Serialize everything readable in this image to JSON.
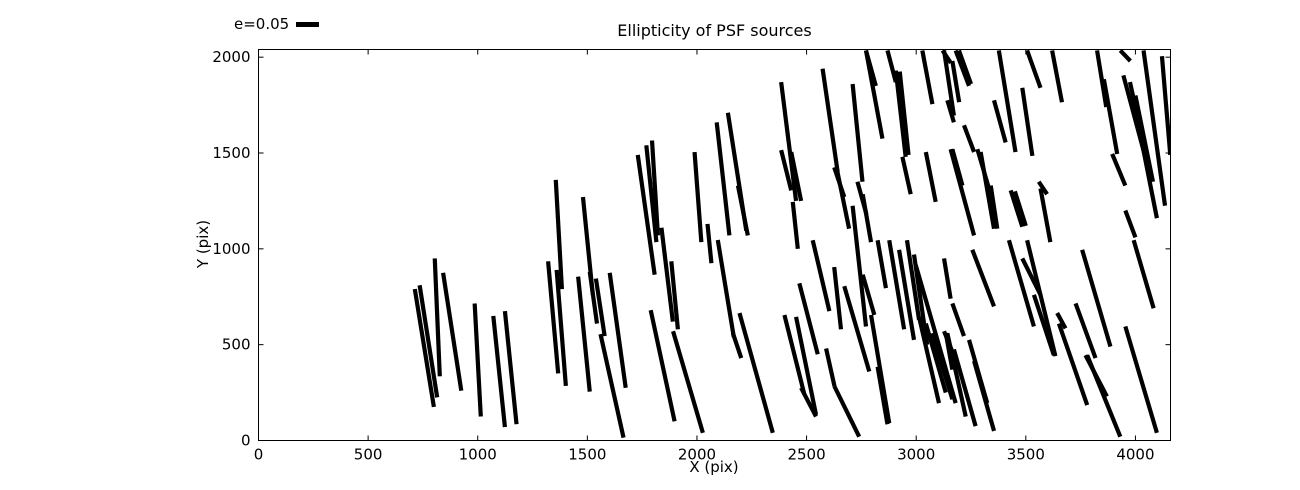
{
  "title": "Ellipticity of PSF sources",
  "legend": {
    "label": "e=0.05",
    "e_value": 0.05
  },
  "axes": {
    "xlabel": "X (pix)",
    "ylabel": "Y (pix)"
  },
  "colors": {
    "stick": "#000000",
    "frame": "#000000",
    "background": "#ffffff"
  },
  "chart_data": {
    "type": "scatter",
    "marker": "ellipticity-stick",
    "title": "Ellipticity of PSF sources",
    "xlabel": "X (pix)",
    "ylabel": "Y (pix)",
    "xlim": [
      0,
      4160
    ],
    "ylim": [
      0,
      2040
    ],
    "xticks": [
      0,
      500,
      1000,
      1500,
      2000,
      2500,
      3000,
      3500,
      4000
    ],
    "yticks": [
      0,
      500,
      1000,
      1500,
      2000
    ],
    "grid": false,
    "legend_position": "top-left-outside",
    "legend_e": 0.05,
    "sticks": [
      [
        713,
        790,
        800,
        175
      ],
      [
        735,
        810,
        815,
        225
      ],
      [
        804,
        950,
        827,
        335
      ],
      [
        842,
        875,
        925,
        260
      ],
      [
        986,
        715,
        1014,
        125
      ],
      [
        1071,
        650,
        1124,
        70
      ],
      [
        1124,
        675,
        1177,
        85
      ],
      [
        1321,
        935,
        1367,
        350
      ],
      [
        1356,
        1360,
        1384,
        790
      ],
      [
        1360,
        890,
        1402,
        285
      ],
      [
        1458,
        855,
        1511,
        255
      ],
      [
        1480,
        1270,
        1525,
        760
      ],
      [
        1511,
        880,
        1544,
        610
      ],
      [
        1539,
        845,
        1579,
        545
      ],
      [
        1560,
        555,
        1665,
        15
      ],
      [
        1602,
        875,
        1675,
        275
      ],
      [
        1730,
        1490,
        1807,
        865
      ],
      [
        1769,
        1540,
        1815,
        1035
      ],
      [
        1795,
        1565,
        1822,
        1070
      ],
      [
        1789,
        680,
        1898,
        100
      ],
      [
        1838,
        1110,
        1890,
        620
      ],
      [
        1883,
        935,
        1913,
        580
      ],
      [
        1891,
        570,
        2027,
        40
      ],
      [
        1989,
        1505,
        2020,
        1035
      ],
      [
        2048,
        1130,
        2066,
        925
      ],
      [
        2095,
        1046,
        2168,
        540
      ],
      [
        2090,
        1660,
        2148,
        1070
      ],
      [
        2141,
        1710,
        2225,
        1095
      ],
      [
        2187,
        1330,
        2232,
        1070
      ],
      [
        2164,
        560,
        2202,
        430
      ],
      [
        2194,
        665,
        2346,
        40
      ],
      [
        2384,
        1870,
        2452,
        1250
      ],
      [
        2384,
        1515,
        2430,
        1305
      ],
      [
        2430,
        1505,
        2475,
        1250
      ],
      [
        2437,
        1245,
        2460,
        1000
      ],
      [
        2399,
        655,
        2490,
        240
      ],
      [
        2452,
        645,
        2543,
        135
      ],
      [
        2467,
        820,
        2551,
        450
      ],
      [
        2475,
        275,
        2543,
        125
      ],
      [
        2573,
        1940,
        2642,
        1400
      ],
      [
        2626,
        1425,
        2672,
        1270
      ],
      [
        2641,
        1400,
        2694,
        1105
      ],
      [
        2528,
        1045,
        2604,
        675
      ],
      [
        2589,
        480,
        2627,
        285
      ],
      [
        2626,
        905,
        2657,
        580
      ],
      [
        2626,
        285,
        2740,
        20
      ],
      [
        2710,
        1860,
        2755,
        1350
      ],
      [
        2732,
        1350,
        2773,
        1180
      ],
      [
        2710,
        1225,
        2771,
        595
      ],
      [
        2756,
        1285,
        2794,
        1035
      ],
      [
        2672,
        805,
        2786,
        360
      ],
      [
        2756,
        865,
        2809,
        655
      ],
      [
        2794,
        655,
        2877,
        90
      ],
      [
        2824,
        385,
        2869,
        85
      ],
      [
        2771,
        2035,
        2816,
        1850
      ],
      [
        2771,
        2035,
        2846,
        1575
      ],
      [
        2824,
        1045,
        2862,
        795
      ],
      [
        2869,
        2035,
        2907,
        1870
      ],
      [
        2907,
        1930,
        2952,
        1480
      ],
      [
        2925,
        1925,
        2965,
        1490
      ],
      [
        2937,
        1480,
        2975,
        1285
      ],
      [
        2877,
        1045,
        2945,
        580
      ],
      [
        2922,
        995,
        2990,
        525
      ],
      [
        2958,
        1045,
        3013,
        630
      ],
      [
        2990,
        970,
        3050,
        500
      ],
      [
        2998,
        915,
        3180,
        195
      ],
      [
        3013,
        645,
        3104,
        195
      ],
      [
        3028,
        2035,
        3074,
        1755
      ],
      [
        3044,
        1505,
        3089,
        1245
      ],
      [
        3044,
        610,
        3135,
        250
      ],
      [
        3074,
        560,
        3165,
        215
      ],
      [
        3120,
        2035,
        3158,
        1970
      ],
      [
        3135,
        560,
        3165,
        370
      ],
      [
        3165,
        1980,
        3196,
        1765
      ],
      [
        3165,
        1520,
        3211,
        1330
      ],
      [
        3127,
        950,
        3157,
        740
      ],
      [
        3127,
        570,
        3195,
        380
      ],
      [
        3142,
        560,
        3226,
        125
      ],
      [
        3172,
        475,
        3271,
        75
      ],
      [
        3241,
        525,
        3324,
        195
      ],
      [
        3264,
        415,
        3355,
        50
      ],
      [
        3256,
        995,
        3355,
        700
      ],
      [
        3165,
        715,
        3218,
        545
      ],
      [
        3127,
        2035,
        3172,
        1695
      ],
      [
        3180,
        2035,
        3241,
        1850
      ],
      [
        3195,
        2035,
        3250,
        1860
      ],
      [
        3142,
        1775,
        3172,
        1660
      ],
      [
        3218,
        1645,
        3264,
        1505
      ],
      [
        3157,
        1520,
        3264,
        1070
      ],
      [
        3279,
        1520,
        3332,
        1315
      ],
      [
        3294,
        1505,
        3355,
        1105
      ],
      [
        3340,
        1330,
        3370,
        1105
      ],
      [
        3355,
        1775,
        3408,
        1555
      ],
      [
        3377,
        2035,
        3453,
        1505
      ],
      [
        3423,
        1045,
        3537,
        595
      ],
      [
        3431,
        1305,
        3484,
        1115
      ],
      [
        3450,
        1300,
        3500,
        1120
      ],
      [
        3484,
        1840,
        3530,
        1485
      ],
      [
        3506,
        2035,
        3567,
        1840
      ],
      [
        3484,
        950,
        3567,
        760
      ],
      [
        3506,
        1045,
        3635,
        440
      ],
      [
        3537,
        760,
        3628,
        445
      ],
      [
        3559,
        1350,
        3597,
        1285
      ],
      [
        3567,
        1315,
        3612,
        1035
      ],
      [
        3620,
        2035,
        3665,
        1765
      ],
      [
        3643,
        665,
        3681,
        585
      ],
      [
        3651,
        610,
        3780,
        185
      ],
      [
        3727,
        715,
        3818,
        430
      ],
      [
        3757,
        995,
        3886,
        490
      ],
      [
        3772,
        445,
        3870,
        230
      ],
      [
        3780,
        445,
        3931,
        20
      ],
      [
        3825,
        2035,
        3867,
        1740
      ],
      [
        3856,
        1885,
        3917,
        1495
      ],
      [
        3894,
        1495,
        3954,
        1330
      ],
      [
        3931,
        2035,
        3977,
        1980
      ],
      [
        3945,
        1905,
        4040,
        1500
      ],
      [
        3975,
        1870,
        4060,
        1430
      ],
      [
        4000,
        1800,
        4080,
        1350
      ],
      [
        4008,
        1680,
        4098,
        1160
      ],
      [
        4037,
        2035,
        4135,
        1225
      ],
      [
        3954,
        1200,
        4000,
        1060
      ],
      [
        3954,
        595,
        4098,
        40
      ],
      [
        3992,
        1045,
        4083,
        690
      ],
      [
        4121,
        2005,
        4159,
        1490
      ]
    ]
  }
}
